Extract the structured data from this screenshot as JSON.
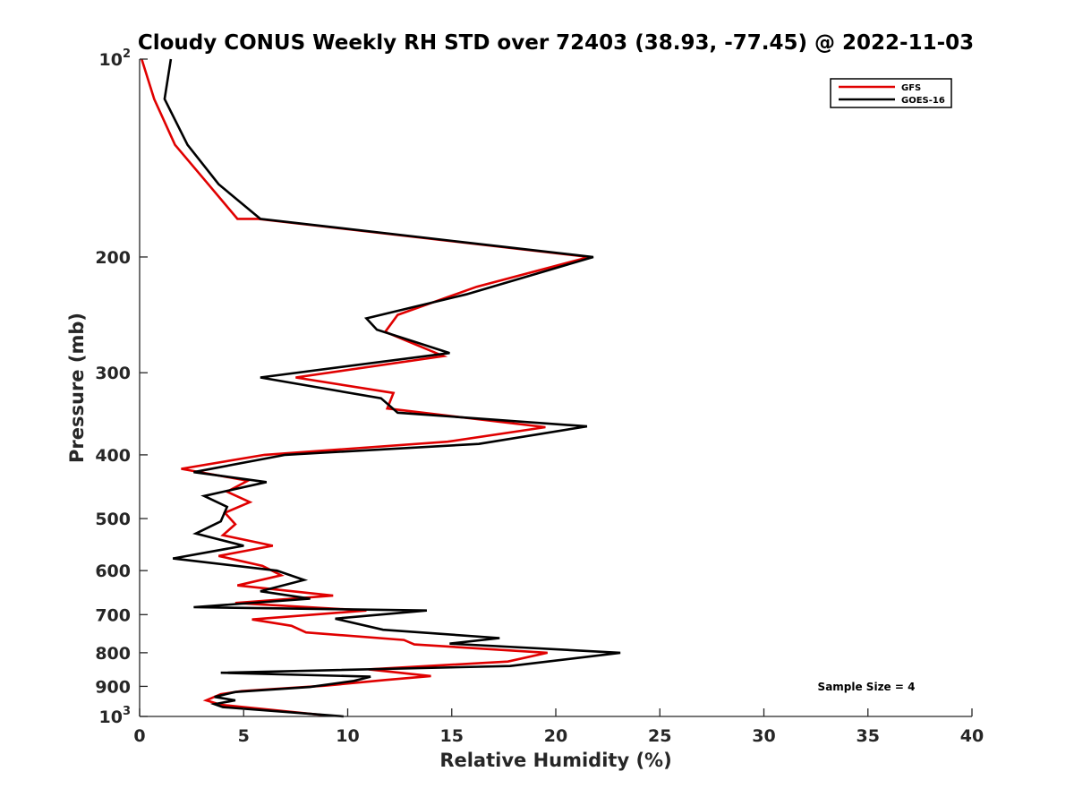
{
  "chart_data": {
    "type": "line",
    "title": "Cloudy CONUS Weekly RH STD over 72403 (38.93, -77.45) @ 2022-11-03",
    "xlabel": "Relative Humidity (%)",
    "ylabel": "Pressure (mb)",
    "xlim": [
      0,
      40
    ],
    "ylim": [
      100,
      1000
    ],
    "y_scale": "log",
    "y_reversed": true,
    "x_ticks": [
      "0",
      "5",
      "10",
      "15",
      "20",
      "25",
      "30",
      "35",
      "40"
    ],
    "y_ticks": [
      {
        "value": 100,
        "base": "10",
        "exp": "2"
      },
      {
        "value": 200,
        "label": "200"
      },
      {
        "value": 300,
        "label": "300"
      },
      {
        "value": 400,
        "label": "400"
      },
      {
        "value": 500,
        "label": "500"
      },
      {
        "value": 600,
        "label": "600"
      },
      {
        "value": 700,
        "label": "700"
      },
      {
        "value": 800,
        "label": "800"
      },
      {
        "value": 900,
        "label": "900"
      },
      {
        "value": 1000,
        "base": "10",
        "exp": "3"
      }
    ],
    "grid": false,
    "legend_position": "top-right",
    "annotation": "Sample Size = 4",
    "series": [
      {
        "name": "GFS",
        "color": "#e00000",
        "points": [
          [
            0.1,
            100
          ],
          [
            0.7,
            115
          ],
          [
            1.7,
            135
          ],
          [
            3.3,
            155
          ],
          [
            4.7,
            175
          ],
          [
            5.7,
            175
          ],
          [
            21.6,
            200
          ],
          [
            16.2,
            222
          ],
          [
            12.4,
            245
          ],
          [
            11.8,
            260
          ],
          [
            14.6,
            283
          ],
          [
            7.5,
            305
          ],
          [
            12.2,
            322
          ],
          [
            11.9,
            340
          ],
          [
            19.5,
            363
          ],
          [
            14.8,
            382
          ],
          [
            6.0,
            400
          ],
          [
            2.0,
            420
          ],
          [
            5.2,
            438
          ],
          [
            4.2,
            455
          ],
          [
            5.3,
            472
          ],
          [
            4.1,
            490
          ],
          [
            4.6,
            510
          ],
          [
            4.0,
            530
          ],
          [
            6.4,
            550
          ],
          [
            3.8,
            570
          ],
          [
            5.9,
            590
          ],
          [
            6.8,
            610
          ],
          [
            4.7,
            632
          ],
          [
            9.3,
            655
          ],
          [
            4.6,
            672
          ],
          [
            10.9,
            690
          ],
          [
            5.4,
            712
          ],
          [
            7.3,
            728
          ],
          [
            8.0,
            745
          ],
          [
            12.7,
            765
          ],
          [
            13.2,
            777
          ],
          [
            19.6,
            800
          ],
          [
            17.7,
            825
          ],
          [
            11.0,
            848
          ],
          [
            14.0,
            868
          ],
          [
            11.8,
            880
          ],
          [
            8.9,
            898
          ],
          [
            4.9,
            915
          ],
          [
            3.9,
            925
          ],
          [
            3.2,
            945
          ],
          [
            3.9,
            960
          ],
          [
            8.8,
            995
          ]
        ]
      },
      {
        "name": "GOES-16",
        "color": "#000000",
        "points": [
          [
            1.5,
            100
          ],
          [
            1.2,
            115
          ],
          [
            2.3,
            135
          ],
          [
            3.8,
            155
          ],
          [
            5.8,
            175
          ],
          [
            21.8,
            200
          ],
          [
            15.7,
            228
          ],
          [
            10.9,
            248
          ],
          [
            11.4,
            258
          ],
          [
            14.9,
            280
          ],
          [
            5.8,
            305
          ],
          [
            11.6,
            328
          ],
          [
            12.4,
            345
          ],
          [
            21.5,
            362
          ],
          [
            16.3,
            385
          ],
          [
            7.0,
            400
          ],
          [
            2.6,
            425
          ],
          [
            6.1,
            440
          ],
          [
            3.1,
            462
          ],
          [
            4.2,
            480
          ],
          [
            3.9,
            505
          ],
          [
            2.7,
            527
          ],
          [
            5.0,
            550
          ],
          [
            1.6,
            575
          ],
          [
            6.6,
            600
          ],
          [
            7.9,
            620
          ],
          [
            5.8,
            645
          ],
          [
            8.2,
            662
          ],
          [
            2.6,
            682
          ],
          [
            13.8,
            690
          ],
          [
            9.4,
            710
          ],
          [
            11.7,
            738
          ],
          [
            17.3,
            760
          ],
          [
            14.9,
            775
          ],
          [
            23.1,
            800
          ],
          [
            17.8,
            838
          ],
          [
            3.9,
            858
          ],
          [
            11.1,
            870
          ],
          [
            10.3,
            883
          ],
          [
            8.2,
            902
          ],
          [
            4.6,
            918
          ],
          [
            3.6,
            934
          ],
          [
            4.6,
            945
          ],
          [
            3.6,
            958
          ],
          [
            4.0,
            968
          ],
          [
            9.8,
            1000
          ]
        ]
      }
    ]
  }
}
